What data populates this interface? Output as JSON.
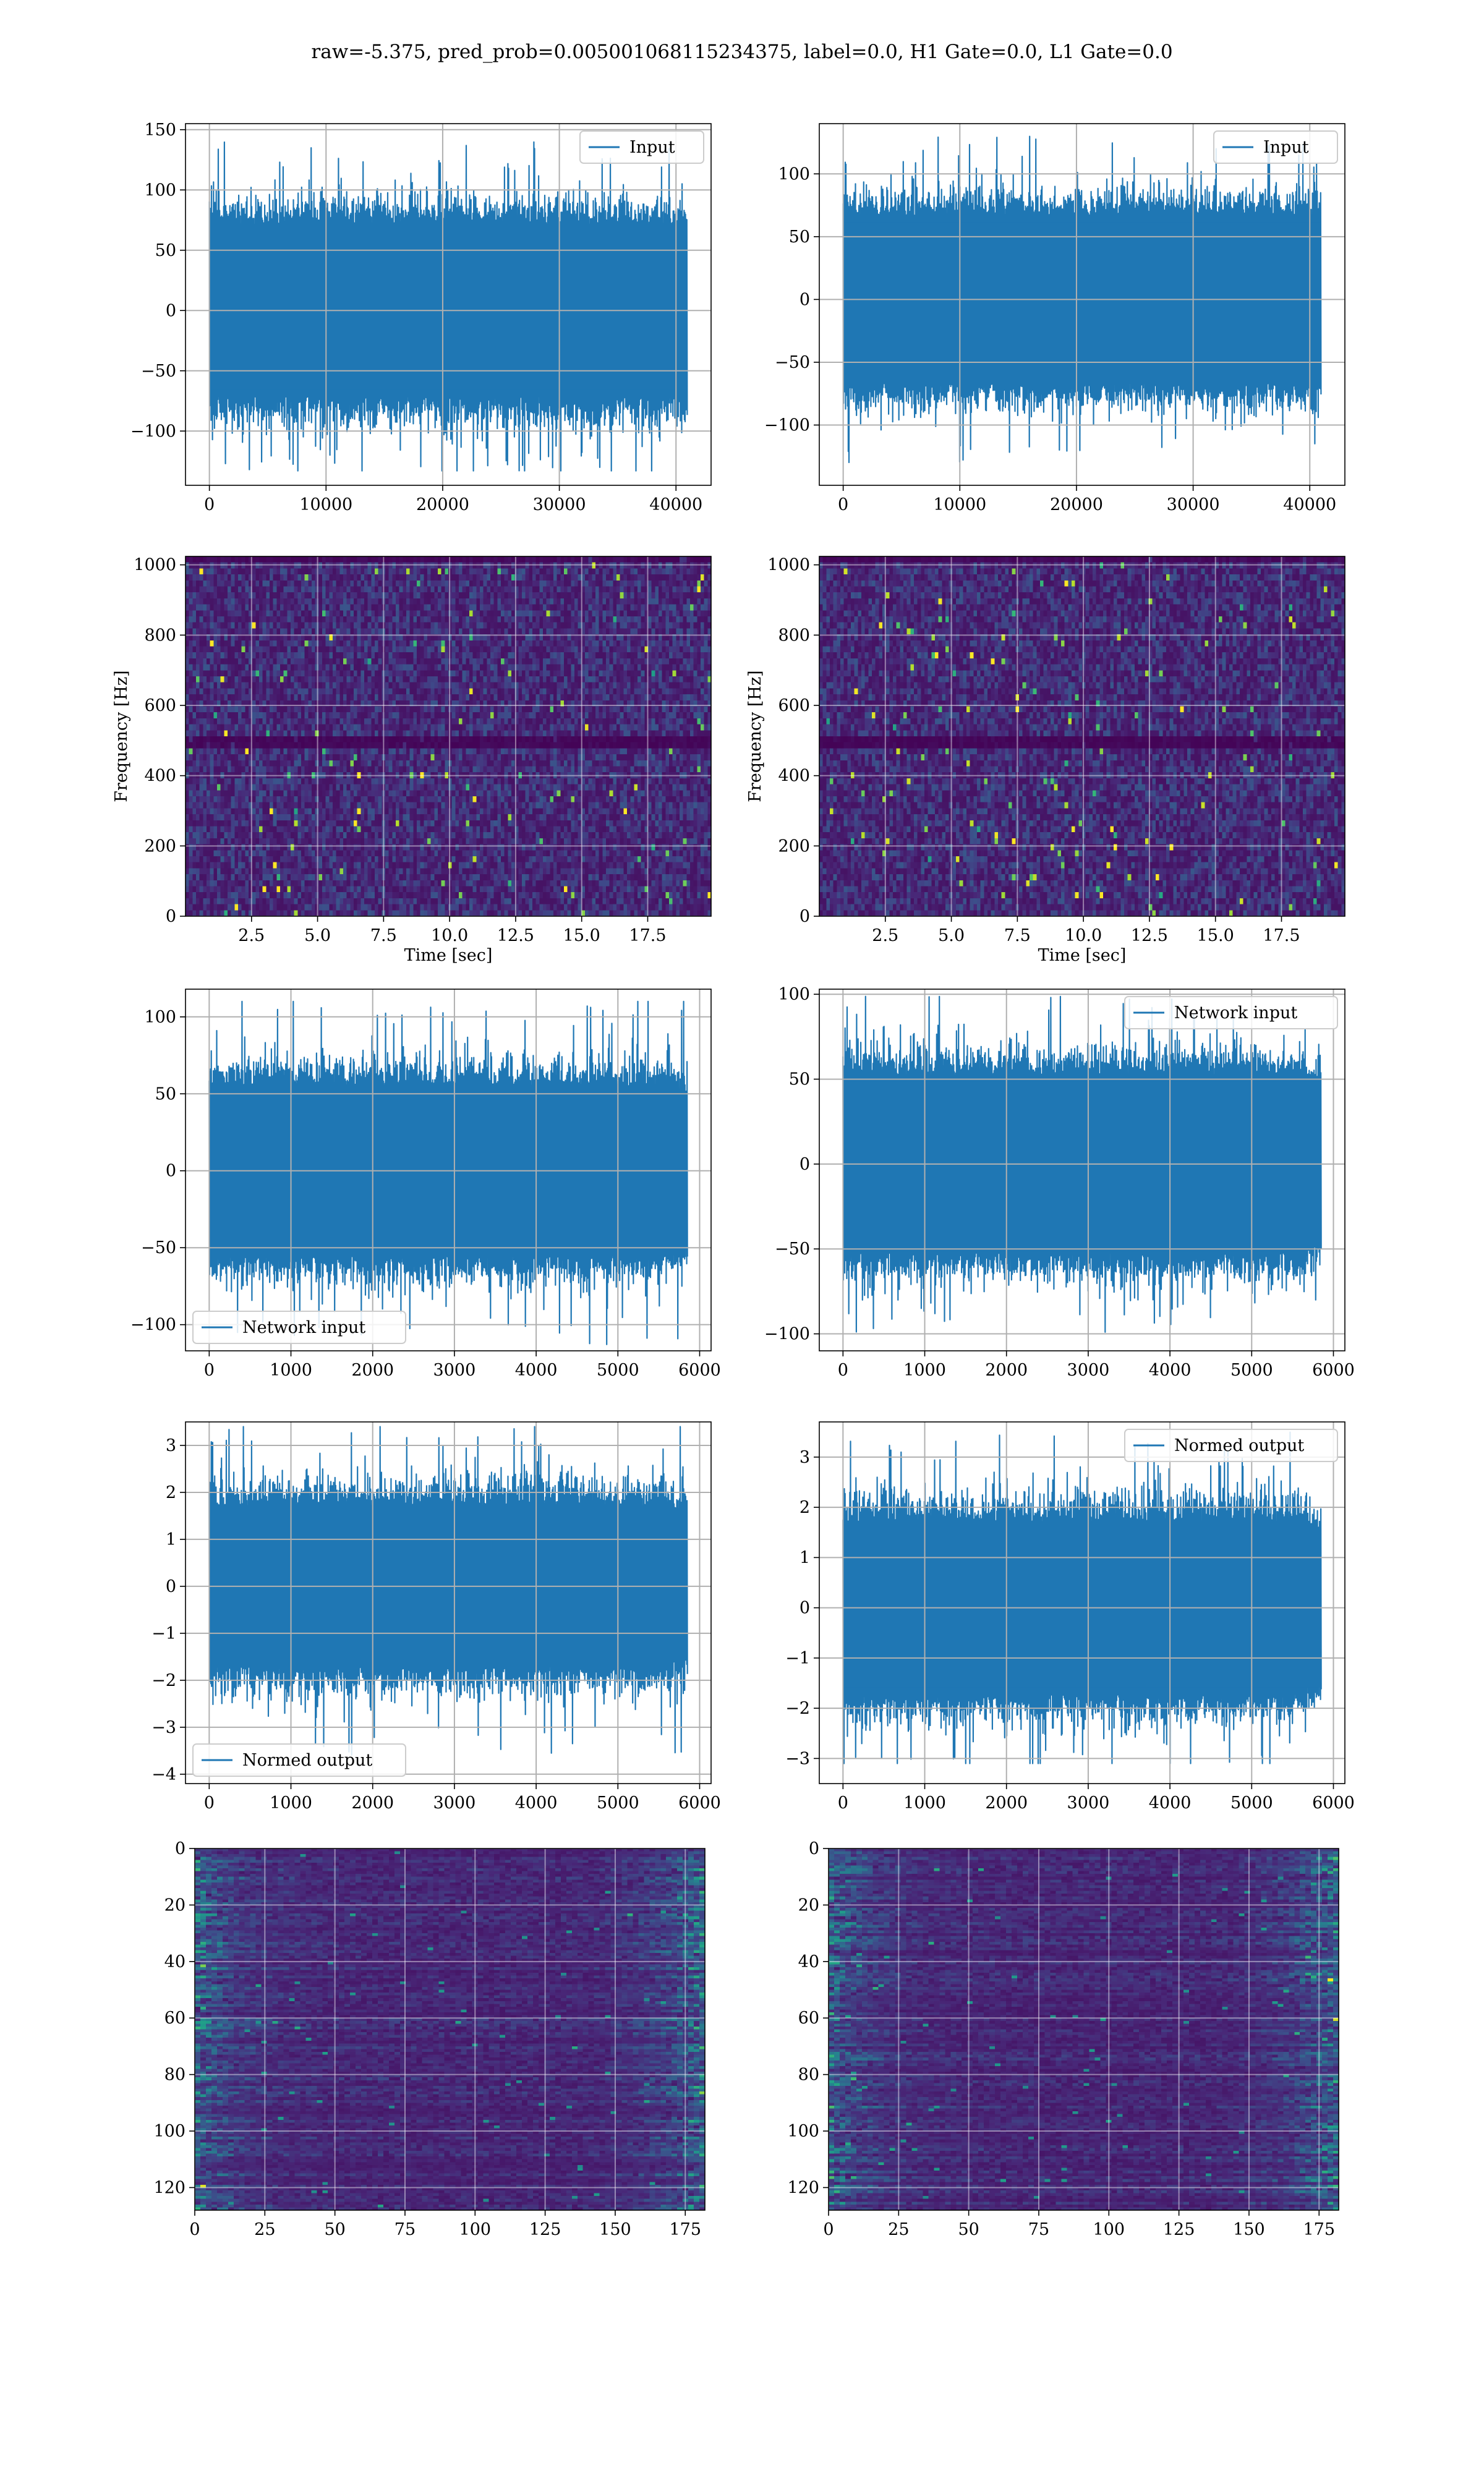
{
  "figure": {
    "suptitle": "raw=-5.375, pred_prob=0.005001068115234375, label=0.0, H1 Gate=0.0, L1 Gate=0.0",
    "series_color": "#1f77b4"
  },
  "chart_data": [
    {
      "id": "h1-input",
      "type": "line",
      "x_range": [
        0,
        40960
      ],
      "xlim": [
        -2048,
        43008
      ],
      "ylim": [
        -145,
        155
      ],
      "xticks": [
        0,
        10000,
        20000,
        30000,
        40000
      ],
      "yticks": [
        -100,
        -50,
        0,
        50,
        100,
        150
      ],
      "envelope": {
        "typical_amplitude": 75,
        "peak_min": -133,
        "peak_max": 140
      },
      "legend": {
        "label": "Input",
        "loc": "upper right"
      },
      "grid": true
    },
    {
      "id": "l1-input",
      "type": "line",
      "x_range": [
        0,
        40960
      ],
      "xlim": [
        -2048,
        43008
      ],
      "ylim": [
        -148,
        140
      ],
      "xticks": [
        0,
        10000,
        20000,
        30000,
        40000
      ],
      "yticks": [
        -100,
        -50,
        0,
        50,
        100
      ],
      "envelope": {
        "typical_amplitude": 70,
        "peak_min": -133,
        "peak_max": 130
      },
      "legend": {
        "label": "Input",
        "loc": "upper right"
      },
      "grid": true
    },
    {
      "id": "h1-spectrogram",
      "type": "heatmap",
      "xlim": [
        0,
        19.9
      ],
      "ylim": [
        0,
        1024
      ],
      "xticks": [
        2.5,
        5.0,
        7.5,
        10.0,
        12.5,
        15.0,
        17.5
      ],
      "xticklabels": [
        "2.5",
        "5.0",
        "7.5",
        "10.0",
        "12.5",
        "15.0",
        "17.5"
      ],
      "yticks": [
        0,
        200,
        400,
        600,
        800,
        1000
      ],
      "xlabel": "Time [sec]",
      "ylabel": "Frequency [Hz]",
      "colormap": "viridis",
      "dark_band_hz": 500,
      "grid": true
    },
    {
      "id": "l1-spectrogram",
      "type": "heatmap",
      "xlim": [
        0,
        19.9
      ],
      "ylim": [
        0,
        1024
      ],
      "xticks": [
        2.5,
        5.0,
        7.5,
        10.0,
        12.5,
        15.0,
        17.5
      ],
      "xticklabels": [
        "2.5",
        "5.0",
        "7.5",
        "10.0",
        "12.5",
        "15.0",
        "17.5"
      ],
      "yticks": [
        0,
        200,
        400,
        600,
        800,
        1000
      ],
      "xlabel": "Time [sec]",
      "ylabel": "Frequency [Hz]",
      "colormap": "viridis",
      "dark_band_hz": 500,
      "grid": true
    },
    {
      "id": "h1-network-input",
      "type": "line",
      "x_range": [
        0,
        5850
      ],
      "xlim": [
        -290,
        6140
      ],
      "ylim": [
        -117,
        118
      ],
      "xticks": [
        0,
        1000,
        2000,
        3000,
        4000,
        5000,
        6000
      ],
      "yticks": [
        -100,
        -50,
        0,
        50,
        100
      ],
      "envelope": {
        "typical_amplitude": 58,
        "peak_min": -113,
        "peak_max": 110
      },
      "legend": {
        "label": "Network input",
        "loc": "lower left"
      },
      "grid": true
    },
    {
      "id": "l1-network-input",
      "type": "line",
      "x_range": [
        0,
        5850
      ],
      "xlim": [
        -290,
        6140
      ],
      "ylim": [
        -110,
        103
      ],
      "xticks": [
        0,
        1000,
        2000,
        3000,
        4000,
        5000,
        6000
      ],
      "yticks": [
        -100,
        -50,
        0,
        50,
        100
      ],
      "envelope": {
        "typical_amplitude": 55,
        "peak_min": -99,
        "peak_max": 100
      },
      "legend": {
        "label": "Network input",
        "loc": "upper right"
      },
      "grid": true
    },
    {
      "id": "h1-normed-output",
      "type": "line",
      "x_range": [
        0,
        5850
      ],
      "xlim": [
        -290,
        6140
      ],
      "ylim": [
        -4.2,
        3.5
      ],
      "xticks": [
        0,
        1000,
        2000,
        3000,
        4000,
        5000,
        6000
      ],
      "yticks": [
        -4,
        -3,
        -2,
        -1,
        0,
        1,
        2,
        3
      ],
      "envelope": {
        "typical_amplitude": 1.8,
        "peak_min": -3.6,
        "peak_max": 3.4
      },
      "legend": {
        "label": "Normed output",
        "loc": "lower left"
      },
      "grid": true
    },
    {
      "id": "l1-normed-output",
      "type": "line",
      "x_range": [
        0,
        5850
      ],
      "xlim": [
        -290,
        6140
      ],
      "ylim": [
        -3.5,
        3.7
      ],
      "xticks": [
        0,
        1000,
        2000,
        3000,
        4000,
        5000,
        6000
      ],
      "yticks": [
        -3,
        -2,
        -1,
        0,
        1,
        2,
        3
      ],
      "envelope": {
        "typical_amplitude": 1.8,
        "peak_min": -3.1,
        "peak_max": 3.5
      },
      "legend": {
        "label": "Normed output",
        "loc": "upper right"
      },
      "grid": true
    },
    {
      "id": "h1-feature-map",
      "type": "heatmap",
      "xlim": [
        0,
        182
      ],
      "ylim": [
        128,
        0
      ],
      "xticks": [
        0,
        25,
        50,
        75,
        100,
        125,
        150,
        175
      ],
      "yticks": [
        0,
        20,
        40,
        60,
        80,
        100,
        120
      ],
      "colormap": "viridis",
      "grid": true
    },
    {
      "id": "l1-feature-map",
      "type": "heatmap",
      "xlim": [
        0,
        182
      ],
      "ylim": [
        128,
        0
      ],
      "xticks": [
        0,
        25,
        50,
        75,
        100,
        125,
        150,
        175
      ],
      "yticks": [
        0,
        20,
        40,
        60,
        80,
        100,
        120
      ],
      "colormap": "viridis",
      "grid": true
    }
  ]
}
